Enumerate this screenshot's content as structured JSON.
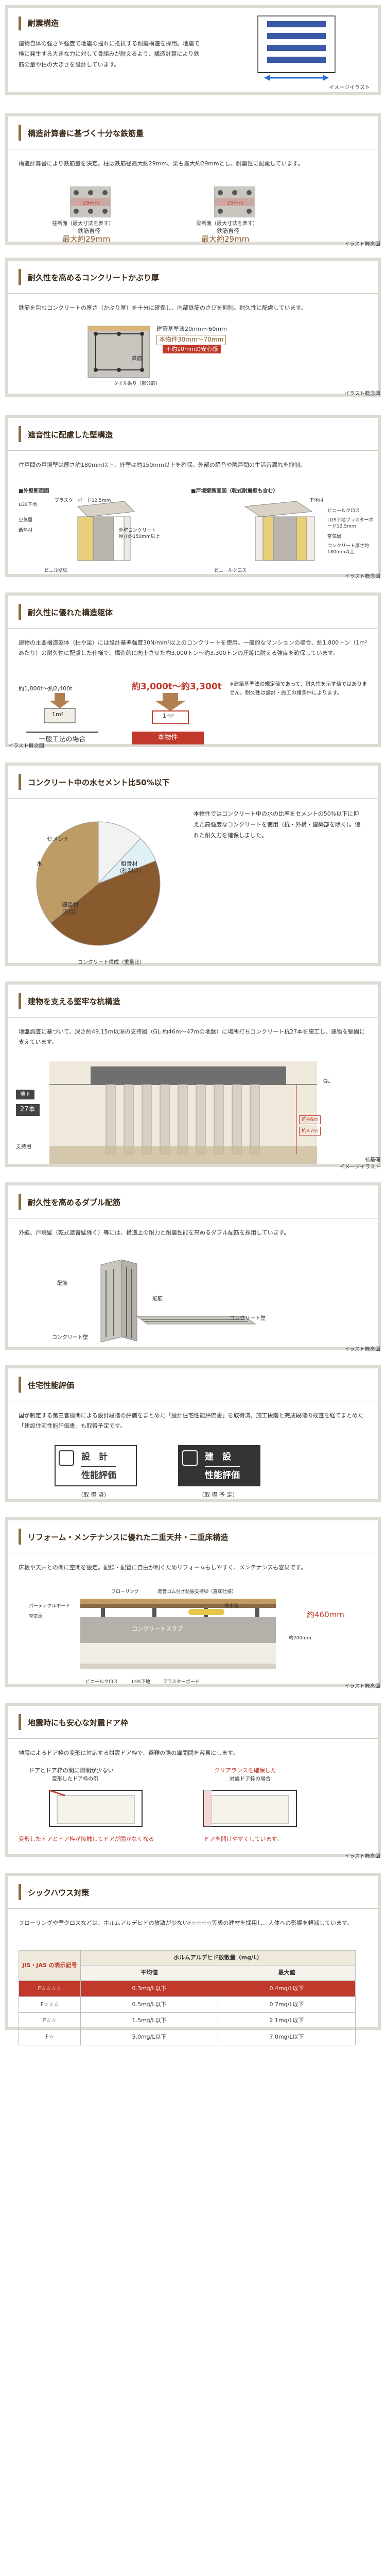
{
  "s1": {
    "title": "耐震構造",
    "text": "建物自体の強さや強度で地震の揺れに抵抗する耐震構造を採用。地震で横に発生する大きな力に対して骨組みが耐えるよう、構造計算により鉄筋の量や柱の大きさを設計しています。",
    "caption": "イメージイラスト"
  },
  "s2": {
    "title": "構造計算書に基づく十分な鉄筋量",
    "text": "構造計算書により鉄筋量を決定。柱は鉄筋径最大約29mm、梁も最大約29mmとし、耐震性に配慮しています。",
    "c1": "柱断面（最大寸法を表す）",
    "c2": "梁断面（最大寸法を表す）",
    "lbl1": "鉄筋直径",
    "val1": "最大約29mm",
    "lbl2": "鉄筋直径",
    "val2": "最大約29mm",
    "mm1": "29mm",
    "mm2": "29mm",
    "caption": "イラスト概念図"
  },
  "s3": {
    "title": "耐久性を高めるコンクリートかぶり厚",
    "text": "鉄筋を包むコンクリートの厚さ（かぶり厚）を十分に確保し、内部鉄筋のさびを抑制。耐久性に配慮しています。",
    "l1": "建築基準法20mm～60mm",
    "l2": "本物件30mm～70mm",
    "l3": "＋約10mmの安心感",
    "l4": "鉄筋",
    "l5": "タイル貼り（部分的）",
    "caption": "イラスト概念図"
  },
  "s4": {
    "title": "遮音性に配慮した壁構造",
    "text": "住戸間の戸境壁は厚さ約180mm以上、外壁は約150mm以上を確保。外部の騒音や隣戸間の生活音漏れを抑制。",
    "sub1": "■外壁断面図",
    "sub2": "■戸境壁断面図（乾式耐震壁も含む）",
    "a": [
      "LGS下地",
      "プラスターボード12.5mm",
      "空気層",
      "断熱材",
      "外壁コンクリート厚さ約150mm以上",
      "ビニル壁紙"
    ],
    "b": [
      "下地材",
      "ビニールクロス",
      "LGS下地プラスターボード12.5mm",
      "空気層",
      "コンクリート厚さ約180mm以上",
      "ビニールクロス"
    ],
    "caption": "イラスト概念図"
  },
  "s5": {
    "title": "耐久性に優れた構造躯体",
    "text": "建物の主要構造躯体（柱や梁）には設計基準強度30N/mm²以上のコンクリートを使用。一般的なマンションの場合、約1,800トン（1m²あたり）の耐久性に配慮した仕様で、構造的に向上させた約3,000トン〜約3,300トンの圧縮に耐える強度を確保しています。",
    "sideText": "※建築基準法の規定値であって、耐久性を示す値ではありません。耐久性は設計・施工の諸条件によります。",
    "v1": "約1,800t〜約2,400t",
    "v2": "約3,000t〜約3,300t",
    "m1": "1m²",
    "m2": "1m²",
    "cap1": "一般工法の場合",
    "cap2": "本物件",
    "caption": "イラスト概念図"
  },
  "s6": {
    "title": "コンクリート中の水セメント比50%以下",
    "text": "本物件ではコンクリート中の水の比率をセメントの50%以下に抑えた高強度なコンクリートを使用（杭・外構・建築部を除く）。優れた耐久力を確保しました。",
    "caption": "コンクリート構成（重量比）",
    "labels": [
      "セメント",
      "水",
      "粗骨材（砂利等）",
      "細骨材（砂等）"
    ]
  },
  "s7": {
    "title": "建物を支える堅牢な杭構造",
    "text": "地盤調査に基づいて、深さ約49.15m以深の支持層（GL-約46m～47mの地盤）に場所打ちコンクリート杭27本を施工し、建物を堅固に支えています。",
    "gl": "GL",
    "floor": "地下",
    "piles": "27本",
    "label": "支持層",
    "d1": "約46m",
    "d2": "約47m",
    "caption": "イメージイラスト",
    "caption2": "杭基礎"
  },
  "s8": {
    "title": "耐久性を高めるダブル配筋",
    "text": "外壁、戸境壁（乾式遮音壁除く）等には、構造上の耐力と耐震性能を高めるダブル配筋を採用しています。",
    "l1": "配筋",
    "l2": "配筋",
    "l3": "コンクリート壁",
    "l4": "コンクリート壁",
    "caption": "イラスト概念図"
  },
  "s9": {
    "title": "住宅性能評価",
    "text": "国が制定する第三者機関による設計段階の評価をまとめた「設計住宅性能評価書」を取得済。施工段階と完成段階の検査を経てまとめた「建設住宅性能評価書」も取得予定です。",
    "b1a": "設　計",
    "b1b": "性能評価",
    "b2a": "建　設",
    "b2b": "性能評価",
    "c1": "（取 得 済）",
    "c2": "（取 得 予 定）"
  },
  "s10": {
    "title": "リフォーム・メンテナンスに優れた二重天井・二重床構造",
    "text": "床板や天井との間に空間を設定。配線・配管に自由が利くためリフォームもしやすく、メンテナンスも容易です。",
    "labels": [
      "フローリング",
      "遮音ゴム付き防振支持脚（直床仕様）",
      "パーティクルボード",
      "空気層",
      "排水管",
      "コンクリートスラブ",
      "約200mm",
      "ビニールクロス",
      "LGS下地",
      "プラスターボード"
    ],
    "h": "約460mm",
    "caption": "イラスト概念図"
  },
  "s11": {
    "title": "地震時にも安心な対震ドア枠",
    "text": "地震によるドア枠の変形に対応する対震ドア枠で、避難の際の扉開閉を容易にします。",
    "l1": "ドアとドア枠の間に隙間が少ない",
    "l2": "変形したドア枠の例",
    "l3": "クリアランスを確保した",
    "l4": "対震ドア枠の場合",
    "bottom1": "変形したドアとドア枠が接触してドアが開かなくなる",
    "bottom2": "ドアを開けやすくしています。",
    "caption": "イラスト概念図"
  },
  "s12": {
    "title": "シックハウス対策",
    "text": "フローリングや壁クロスなどは、ホルムアルデヒドの放散が少ないF☆☆☆☆等級の建材を採用し、人体への影響を軽減しています。",
    "th1": "JIS・JAS の表示記号",
    "th2": "ホルムアルデヒド放散量（mg/L）",
    "th3": "平均値",
    "th4": "最大値",
    "rows": [
      [
        "F☆☆☆☆",
        "0.3mg/L以下",
        "0.4mg/L以下"
      ],
      [
        "F☆☆☆",
        "0.5mg/L以下",
        "0.7mg/L以下"
      ],
      [
        "F☆☆",
        "1.5mg/L以下",
        "2.1mg/L以下"
      ],
      [
        "F☆",
        "5.0mg/L以下",
        "7.0mg/L以下"
      ]
    ]
  }
}
